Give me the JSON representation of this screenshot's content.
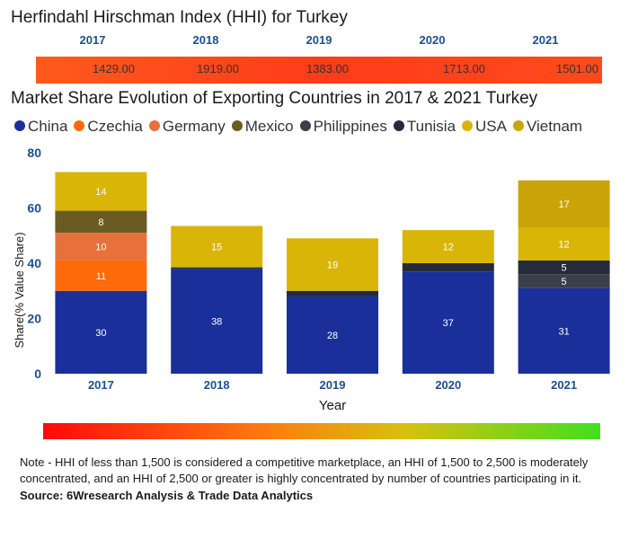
{
  "hhi": {
    "title": "Herfindahl Hirschman Index (HHI) for Turkey",
    "years": [
      "2017",
      "2018",
      "2019",
      "2020",
      "2021"
    ],
    "values": [
      "1429.00",
      "1919.00",
      "1383.00",
      "1713.00",
      "1501.00"
    ]
  },
  "share_title": "Market Share Evolution of Exporting Countries in 2017 & 2021 Turkey",
  "legend": [
    {
      "name": "China",
      "color": "#1a2f9a"
    },
    {
      "name": "Czechia",
      "color": "#ff6a0a"
    },
    {
      "name": "Germany",
      "color": "#e8703a"
    },
    {
      "name": "Mexico",
      "color": "#6b5a22"
    },
    {
      "name": "Philippines",
      "color": "#3a3f4a"
    },
    {
      "name": "Tunisia",
      "color": "#252b38"
    },
    {
      "name": "USA",
      "color": "#d9b508"
    },
    {
      "name": "Vietnam",
      "color": "#c9a50a"
    }
  ],
  "chart_data": {
    "type": "bar",
    "stacked": true,
    "categories": [
      "2017",
      "2018",
      "2019",
      "2020",
      "2021"
    ],
    "series": [
      {
        "name": "China",
        "color": "#1a2f9a",
        "values": [
          30,
          38,
          28,
          37,
          31
        ]
      },
      {
        "name": "Czechia",
        "color": "#ff6a0a",
        "values": [
          11,
          0,
          0,
          0,
          0
        ]
      },
      {
        "name": "Germany",
        "color": "#e8703a",
        "values": [
          10,
          0,
          0,
          0,
          0
        ]
      },
      {
        "name": "Mexico",
        "color": "#6b5a22",
        "values": [
          8,
          0,
          0,
          0,
          0
        ]
      },
      {
        "name": "Philippines",
        "color": "#3a3f4a",
        "values": [
          0,
          0,
          0,
          0,
          5
        ]
      },
      {
        "name": "Tunisia",
        "color": "#252b38",
        "values": [
          0,
          0.5,
          2,
          3,
          5
        ]
      },
      {
        "name": "USA",
        "color": "#d9b508",
        "values": [
          14,
          15,
          19,
          12,
          12
        ]
      },
      {
        "name": "Vietnam",
        "color": "#c9a50a",
        "values": [
          0,
          0,
          0,
          0,
          17
        ]
      }
    ],
    "labels": [
      [
        30,
        11,
        10,
        8,
        null,
        null,
        14,
        null
      ],
      [
        38,
        null,
        null,
        null,
        null,
        null,
        15,
        null
      ],
      [
        28,
        null,
        null,
        null,
        null,
        null,
        19,
        null
      ],
      [
        37,
        null,
        null,
        null,
        null,
        null,
        12,
        null
      ],
      [
        31,
        null,
        null,
        null,
        5,
        5,
        12,
        17
      ]
    ],
    "yticks": [
      0,
      20,
      40,
      60,
      80
    ],
    "ylim": [
      0,
      80
    ],
    "xlabel": "Year",
    "ylabel": "Share(% Value Share)"
  },
  "note": "Note - HHI of less than 1,500 is considered a competitive marketplace, an HHI of 1,500 to 2,500 is moderately concentrated, and an HHI of 2,500 or greater is highly concentrated by number of countries participating in it.",
  "source": "Source: 6Wresearch Analysis & Trade Data Analytics"
}
